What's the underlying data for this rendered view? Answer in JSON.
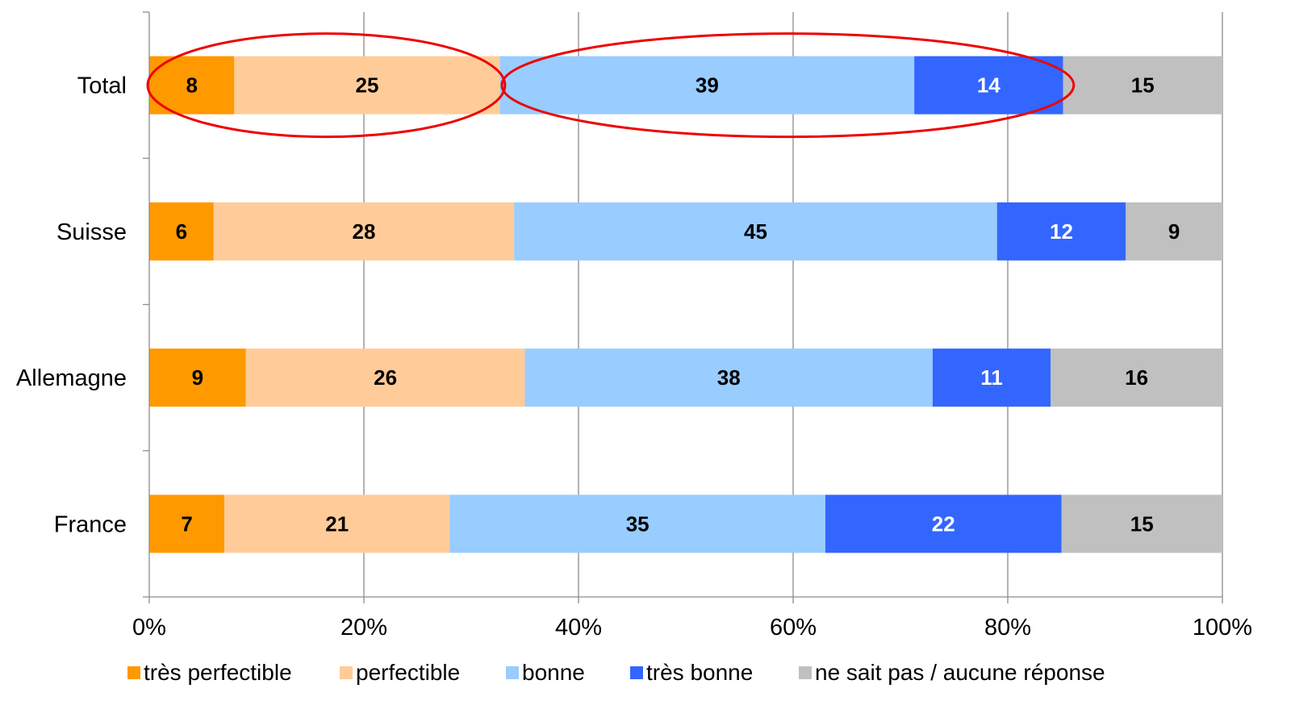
{
  "chart_data": {
    "type": "bar",
    "orientation": "horizontal",
    "stacked": true,
    "categories": [
      "Total",
      "Suisse",
      "Allemagne",
      "France"
    ],
    "series": [
      {
        "name": "très perfectible",
        "color": "#ff9900",
        "label_color": "#000000",
        "values": [
          8,
          6,
          9,
          7
        ]
      },
      {
        "name": "perfectible",
        "color": "#ffcc99",
        "label_color": "#000000",
        "values": [
          25,
          28,
          26,
          21
        ]
      },
      {
        "name": "bonne",
        "color": "#99ccff",
        "label_color": "#000000",
        "values": [
          39,
          45,
          38,
          35
        ]
      },
      {
        "name": "très bonne",
        "color": "#3366ff",
        "label_color": "#ffffff",
        "values": [
          14,
          12,
          11,
          22
        ]
      },
      {
        "name": "ne sait pas / aucune réponse",
        "color": "#c0c0c0",
        "label_color": "#000000",
        "values": [
          15,
          9,
          16,
          15
        ]
      }
    ],
    "xlim": [
      0,
      100
    ],
    "xticks": [
      "0%",
      "20%",
      "40%",
      "60%",
      "80%",
      "100%"
    ],
    "grid": true,
    "legend_position": "bottom",
    "annotations": [
      {
        "shape": "ellipse",
        "color": "#ee0000",
        "category": "Total",
        "from": 0,
        "to": 33
      },
      {
        "shape": "ellipse",
        "color": "#ee0000",
        "category": "Total",
        "from": 33,
        "to": 86
      }
    ]
  }
}
